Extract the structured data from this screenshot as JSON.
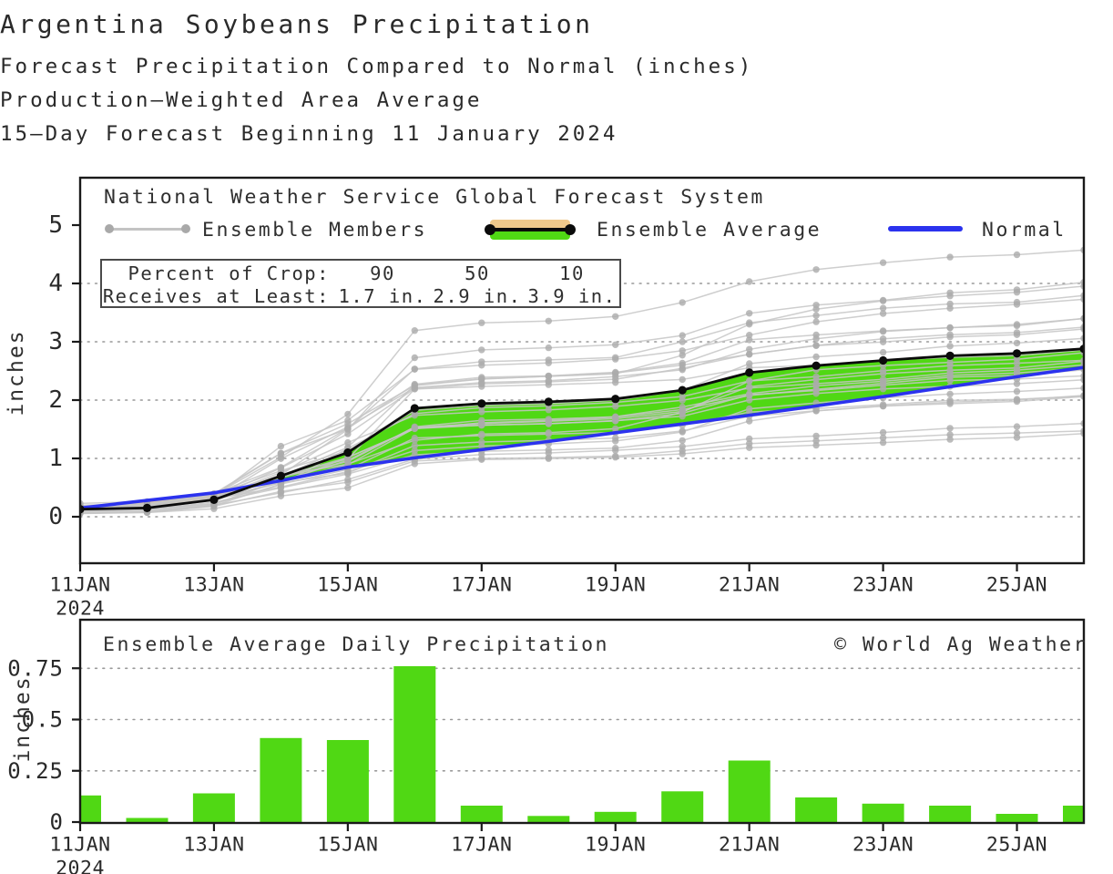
{
  "header": {
    "title": "Argentina Soybeans Precipitation",
    "subtitle1": "Forecast Precipitation Compared to Normal (inches)",
    "subtitle2": "Production–Weighted Area Average",
    "subtitle3": "15–Day Forecast Beginning 11 January 2024"
  },
  "colors": {
    "green_fill": "#50d814",
    "orange_fill": "#f0c98c",
    "normal_blue": "#2b32ee",
    "member_line": "#c6c6c6",
    "member_dot": "#ababab",
    "average_black": "#0b0b0b",
    "grid": "#999999",
    "axis": "#1a1a1a"
  },
  "chart_data": [
    {
      "id": "cumulative-forecast",
      "type": "line",
      "source_label": "National Weather Service Global Forecast System",
      "ylabel": "inches",
      "ylim": [
        -0.8,
        5.8
      ],
      "y_ticks": [
        0,
        1,
        2,
        3,
        4,
        5
      ],
      "grid_lines_at": [
        0,
        1,
        2,
        3,
        4
      ],
      "x_tick_labels": [
        "11JAN",
        "13JAN",
        "15JAN",
        "17JAN",
        "19JAN",
        "21JAN",
        "23JAN",
        "25JAN"
      ],
      "x_start_year": "2024",
      "days_shown": 16,
      "legend": [
        {
          "label": "Ensemble Members"
        },
        {
          "label": "Ensemble Average"
        },
        {
          "label": "Normal"
        }
      ],
      "crop_table": {
        "rows": [
          "Percent of Crop:",
          "Receives at Least:"
        ],
        "percents": [
          "90",
          "50",
          "10"
        ],
        "amounts": [
          "1.7 in.",
          "2.9 in.",
          "3.9 in."
        ]
      },
      "series": [
        {
          "name": "Ensemble Average",
          "color": "#0b0b0b",
          "values": [
            0.13,
            0.15,
            0.29,
            0.7,
            1.1,
            1.86,
            1.94,
            1.97,
            2.02,
            2.17,
            2.47,
            2.59,
            2.68,
            2.76,
            2.8,
            2.88
          ]
        },
        {
          "name": "Normal",
          "color": "#2b32ee",
          "values": [
            0.15,
            0.28,
            0.41,
            0.62,
            0.85,
            1.01,
            1.15,
            1.29,
            1.44,
            1.59,
            1.74,
            1.9,
            2.06,
            2.23,
            2.4,
            2.56
          ]
        }
      ],
      "members_base_increments": [
        0.13,
        0.02,
        0.14,
        0.41,
        0.4,
        0.76,
        0.08,
        0.03,
        0.05,
        0.15,
        0.3,
        0.12,
        0.09,
        0.08,
        0.04,
        0.08
      ],
      "members_params": [
        [
          0.7,
          0.7,
          0.7
        ],
        [
          0.75,
          0.8,
          0.6
        ],
        [
          0.8,
          0.75,
          1.0
        ],
        [
          0.85,
          0.9,
          0.8
        ],
        [
          0.9,
          0.85,
          1.1
        ],
        [
          0.95,
          1.0,
          0.9
        ],
        [
          1.0,
          0.95,
          1.0
        ],
        [
          1.0,
          1.05,
          1.1
        ],
        [
          1.05,
          1.0,
          0.95
        ],
        [
          1.05,
          1.1,
          1.15
        ],
        [
          1.1,
          0.9,
          1.2
        ],
        [
          1.1,
          1.15,
          0.9
        ],
        [
          1.15,
          1.05,
          1.05
        ],
        [
          1.2,
          1.1,
          1.1
        ],
        [
          1.25,
          1.2,
          0.95
        ],
        [
          1.3,
          1.15,
          1.2
        ],
        [
          0.85,
          0.6,
          1.3
        ],
        [
          0.95,
          1.25,
          0.7
        ],
        [
          1.15,
          0.8,
          1.25
        ],
        [
          0.8,
          1.1,
          1.0
        ],
        [
          1.25,
          1.0,
          1.3
        ],
        [
          0.6,
          0.85,
          0.9
        ],
        [
          1.35,
          1.2,
          1.1
        ],
        [
          0.7,
          1.0,
          1.2
        ],
        [
          0.88,
          1.3,
          0.55
        ],
        [
          1.08,
          0.7,
          1.4
        ]
      ]
    },
    {
      "id": "daily-precip",
      "type": "bar",
      "title": "Ensemble Average Daily Precipitation",
      "watermark": "© World Ag Weather",
      "ylabel": "inches",
      "ylim": [
        0,
        0.99
      ],
      "y_ticks": [
        0,
        0.25,
        0.5,
        0.75
      ],
      "y_tick_labels": [
        "0",
        "0.25",
        "0.5",
        "0.75"
      ],
      "x_tick_labels": [
        "11JAN",
        "13JAN",
        "15JAN",
        "17JAN",
        "19JAN",
        "21JAN",
        "23JAN",
        "25JAN"
      ],
      "x_start_year": "2024",
      "bar_color": "#50d814",
      "values": [
        0.13,
        0.02,
        0.14,
        0.41,
        0.4,
        0.76,
        0.08,
        0.03,
        0.05,
        0.15,
        0.3,
        0.12,
        0.09,
        0.08,
        0.04,
        0.08
      ]
    }
  ]
}
